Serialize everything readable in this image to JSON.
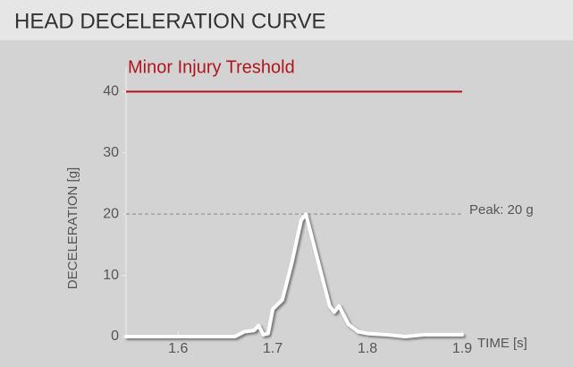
{
  "chart_data": {
    "type": "line",
    "title": "HEAD DECELERATION CURVE",
    "x_label": "TIME [s]",
    "y_label": "DECELERATION [g]",
    "x": [
      1.545,
      1.66,
      1.67,
      1.68,
      1.685,
      1.69,
      1.695,
      1.7,
      1.71,
      1.72,
      1.73,
      1.735,
      1.74,
      1.75,
      1.76,
      1.765,
      1.77,
      1.78,
      1.79,
      1.8,
      1.82,
      1.84,
      1.86,
      1.88,
      1.9
    ],
    "series": [
      {
        "color": "#ffffff",
        "values": [
          0,
          0,
          0.8,
          1,
          1.8,
          0.3,
          0.5,
          4.5,
          6,
          12,
          19,
          20,
          17,
          11,
          5,
          4,
          5,
          2,
          0.8,
          0.5,
          0.3,
          0,
          0.3,
          0.3,
          0.3
        ]
      }
    ],
    "xlim": [
      1.545,
      1.9
    ],
    "xticks": [
      1.6,
      1.7,
      1.8,
      1.9
    ],
    "ylim": [
      0,
      44
    ],
    "yticks": [
      0,
      10,
      20,
      30,
      40
    ],
    "threshold": {
      "value": 40,
      "label": "Minor Injury Treshold",
      "color": "#b0151e"
    },
    "peak": {
      "value": 20,
      "label": "Peak: 20 g"
    }
  }
}
